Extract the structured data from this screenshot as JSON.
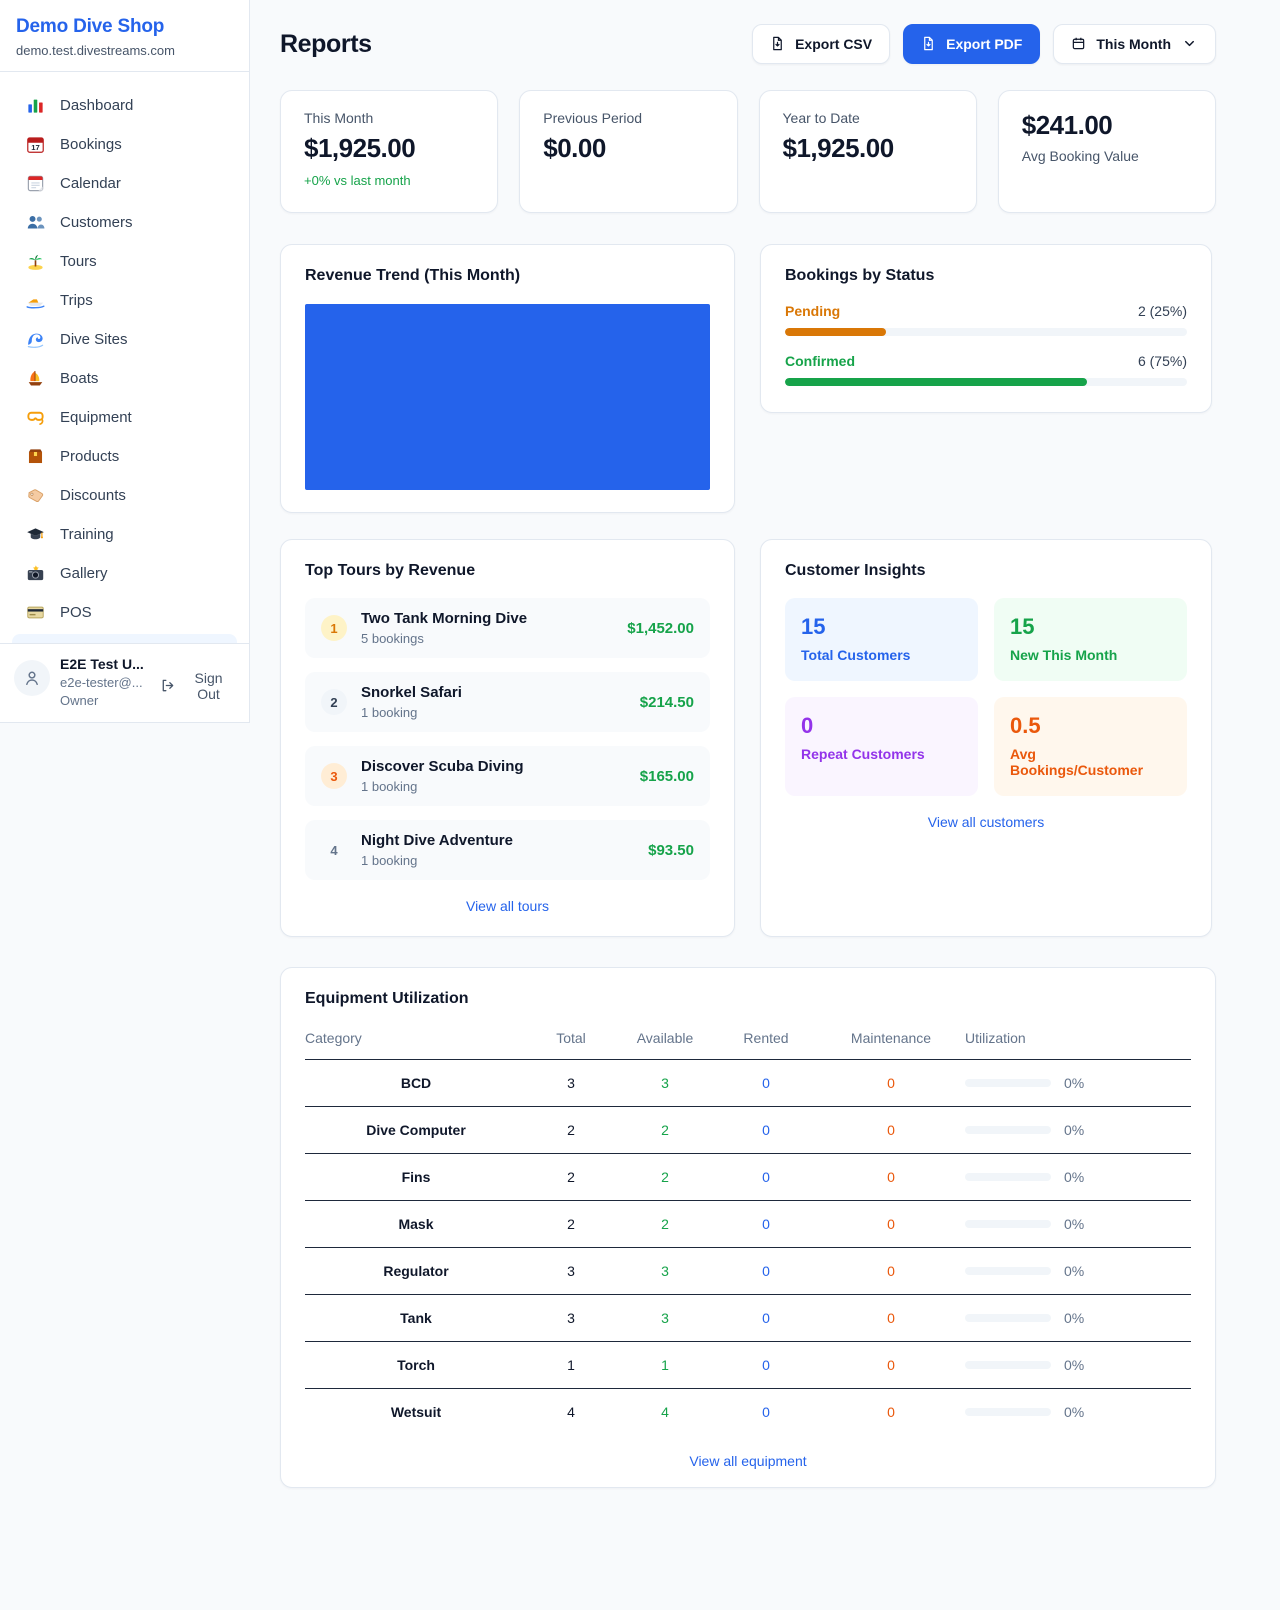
{
  "brand": {
    "name": "Demo Dive Shop",
    "domain": "demo.test.divestreams.com"
  },
  "sidebar": {
    "items": [
      {
        "icon": "dashboard-icon",
        "label": "Dashboard"
      },
      {
        "icon": "bookings-icon",
        "label": "Bookings"
      },
      {
        "icon": "calendar-icon",
        "label": "Calendar"
      },
      {
        "icon": "customers-icon",
        "label": "Customers"
      },
      {
        "icon": "tours-icon",
        "label": "Tours"
      },
      {
        "icon": "trips-icon",
        "label": "Trips"
      },
      {
        "icon": "dive-sites-icon",
        "label": "Dive Sites"
      },
      {
        "icon": "boats-icon",
        "label": "Boats"
      },
      {
        "icon": "equipment-icon",
        "label": "Equipment"
      },
      {
        "icon": "products-icon",
        "label": "Products"
      },
      {
        "icon": "discounts-icon",
        "label": "Discounts"
      },
      {
        "icon": "training-icon",
        "label": "Training"
      },
      {
        "icon": "gallery-icon",
        "label": "Gallery"
      },
      {
        "icon": "pos-icon",
        "label": "POS"
      }
    ],
    "user": {
      "name": "E2E Test U...",
      "email": "e2e-tester@...",
      "role": "Owner",
      "sign_out_label": "Sign Out"
    }
  },
  "header": {
    "title": "Reports",
    "export_csv_label": "Export CSV",
    "export_pdf_label": "Export PDF",
    "period_label": "This Month"
  },
  "stats": [
    {
      "label": "This Month",
      "value": "$1,925.00",
      "delta": "+0% vs last month"
    },
    {
      "label": "Previous Period",
      "value": "$0.00"
    },
    {
      "label": "Year to Date",
      "value": "$1,925.00"
    },
    {
      "label": "Avg Booking Value",
      "value": "$241.00",
      "value_first": true
    }
  ],
  "revenue_trend": {
    "title": "Revenue Trend (This Month)"
  },
  "chart_data": {
    "type": "bar",
    "title": "Revenue Trend (This Month)",
    "categories": [
      "This Month"
    ],
    "series": [
      {
        "name": "Revenue",
        "values": [
          1925.0
        ]
      }
    ],
    "bar_color": "#2563eb",
    "axes_visible": false,
    "layout_hint": "single solid blue bar filling the entire plot area, no axis ticks or labels visible"
  },
  "bookings_by_status": {
    "title": "Bookings by Status",
    "rows": [
      {
        "label": "Pending",
        "value_text": "2 (25%)",
        "count": 2,
        "percent": 25,
        "color": "#d97706"
      },
      {
        "label": "Confirmed",
        "value_text": "6 (75%)",
        "count": 6,
        "percent": 75,
        "color": "#16a34a"
      }
    ]
  },
  "top_tours": {
    "title": "Top Tours by Revenue",
    "view_all_label": "View all tours",
    "items": [
      {
        "rank": "1",
        "name": "Two Tank Morning Dive",
        "bookings": "5 bookings",
        "revenue": "$1,452.00",
        "badge_fg": "#d97706",
        "badge_bg": "#fef3c7"
      },
      {
        "rank": "2",
        "name": "Snorkel Safari",
        "bookings": "1 booking",
        "revenue": "$214.50",
        "badge_fg": "#334155",
        "badge_bg": "#f1f5f9"
      },
      {
        "rank": "3",
        "name": "Discover Scuba Diving",
        "bookings": "1 booking",
        "revenue": "$165.00",
        "badge_fg": "#ea580c",
        "badge_bg": "#ffedd5"
      },
      {
        "rank": "4",
        "name": "Night Dive Adventure",
        "bookings": "1 booking",
        "revenue": "$93.50",
        "badge_fg": "#64748b",
        "badge_bg": "transparent"
      }
    ]
  },
  "customer_insights": {
    "title": "Customer Insights",
    "view_all_label": "View all customers",
    "tiles": [
      {
        "value": "15",
        "label": "Total Customers",
        "fg": "#2563eb",
        "bg": "#eff6ff"
      },
      {
        "value": "15",
        "label": "New This Month",
        "fg": "#16a34a",
        "bg": "#f0fdf4"
      },
      {
        "value": "0",
        "label": "Repeat Customers",
        "fg": "#9333ea",
        "bg": "#faf5ff"
      },
      {
        "value": "0.5",
        "label": "Avg Bookings/Customer",
        "fg": "#ea580c",
        "bg": "#fff7ed"
      }
    ]
  },
  "equipment": {
    "title": "Equipment Utilization",
    "view_all_label": "View all equipment",
    "columns": [
      "Category",
      "Total",
      "Available",
      "Rented",
      "Maintenance",
      "Utilization"
    ],
    "rows": [
      {
        "category": "BCD",
        "total": "3",
        "available": "3",
        "rented": "0",
        "maintenance": "0",
        "utilization": "0%",
        "utilization_pct": 0
      },
      {
        "category": "Dive Computer",
        "total": "2",
        "available": "2",
        "rented": "0",
        "maintenance": "0",
        "utilization": "0%",
        "utilization_pct": 0
      },
      {
        "category": "Fins",
        "total": "2",
        "available": "2",
        "rented": "0",
        "maintenance": "0",
        "utilization": "0%",
        "utilization_pct": 0
      },
      {
        "category": "Mask",
        "total": "2",
        "available": "2",
        "rented": "0",
        "maintenance": "0",
        "utilization": "0%",
        "utilization_pct": 0
      },
      {
        "category": "Regulator",
        "total": "3",
        "available": "3",
        "rented": "0",
        "maintenance": "0",
        "utilization": "0%",
        "utilization_pct": 0
      },
      {
        "category": "Tank",
        "total": "3",
        "available": "3",
        "rented": "0",
        "maintenance": "0",
        "utilization": "0%",
        "utilization_pct": 0
      },
      {
        "category": "Torch",
        "total": "1",
        "available": "1",
        "rented": "0",
        "maintenance": "0",
        "utilization": "0%",
        "utilization_pct": 0
      },
      {
        "category": "Wetsuit",
        "total": "4",
        "available": "4",
        "rented": "0",
        "maintenance": "0",
        "utilization": "0%",
        "utilization_pct": 0
      }
    ]
  },
  "colors": {
    "accent": "#2563eb",
    "positive": "#16a34a",
    "pending": "#d97706",
    "maintenance": "#ea580c",
    "brand": "#2563eb"
  }
}
